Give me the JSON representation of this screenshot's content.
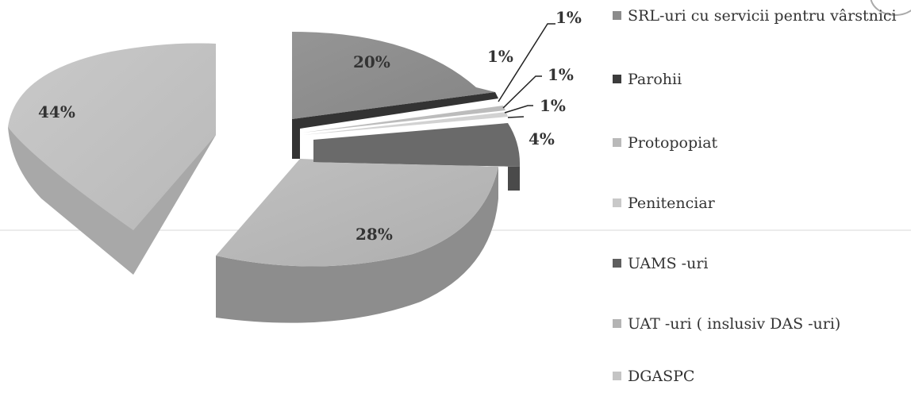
{
  "chart_data": {
    "type": "pie",
    "title": "",
    "exploded": true,
    "three_d": true,
    "legend_position": "right",
    "slices": [
      {
        "label": "SRL-uri cu servicii pentru vârstnici",
        "value": 20,
        "display": "20%",
        "color": "#8c8c8c"
      },
      {
        "label": "Parohii",
        "value": 1,
        "display": "1%",
        "color": "#3c3c3c"
      },
      {
        "label": "Protopopiat",
        "value": 1,
        "display": "1%",
        "color": "#b9b9b9"
      },
      {
        "label": "Penitenciar",
        "value": 1,
        "display": "1%",
        "color": "#c8c8c8"
      },
      {
        "label": "UAMS -uri",
        "value": 4,
        "display": "4%",
        "color": "#5e5e5e"
      },
      {
        "label": "UAT -uri ( inslusiv DAS -uri)",
        "value": 28,
        "display": "28%",
        "color": "#b4b4b4"
      },
      {
        "label": "DGASPC",
        "value": 44,
        "display": "44%",
        "color": "#c4c4c4"
      }
    ],
    "extra_labels": [
      "1%"
    ]
  }
}
